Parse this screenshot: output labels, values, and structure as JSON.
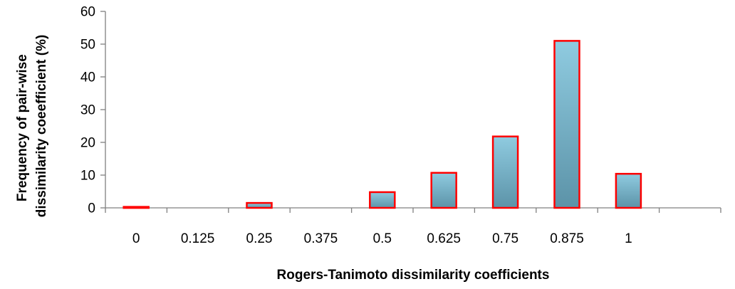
{
  "chart_data": {
    "type": "bar",
    "categories": [
      "0",
      "0.125",
      "0.25",
      "0.375",
      "0.5",
      "0.625",
      "0.75",
      "0.875",
      "1"
    ],
    "values": [
      0.3,
      0,
      1.5,
      0,
      4.8,
      10.7,
      21.8,
      51,
      10.4
    ],
    "ylim": [
      0,
      60
    ],
    "yticks": [
      "0",
      "10",
      "20",
      "30",
      "40",
      "50",
      "60"
    ],
    "xlabel": "Rogers-Tanimoto dissimilarity coefficients",
    "ylabel_lines": [
      "Frequency of pair-wise",
      "dissimilarity coeefficient (%)"
    ],
    "grid": false,
    "legend": "none",
    "bar_fill_top": "#8fcbe0",
    "bar_fill_bottom": "#5c93a8",
    "bar_stroke": "#ff0000",
    "axis_color": "#808080"
  }
}
